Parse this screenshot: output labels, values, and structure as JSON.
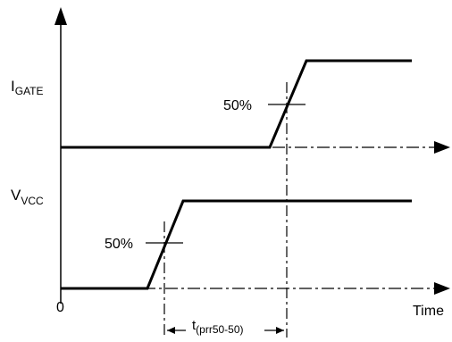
{
  "labels": {
    "i_gate_main": "I",
    "i_gate_sub": "GATE",
    "v_vcc_main": "V",
    "v_vcc_sub": "VCC",
    "origin": "0",
    "time": "Time",
    "pct_upper": "50%",
    "pct_lower": "50%",
    "t_main": "t",
    "t_sub": "(prr50-50)"
  },
  "colors": {
    "line": "#000000",
    "background": "#ffffff"
  }
}
